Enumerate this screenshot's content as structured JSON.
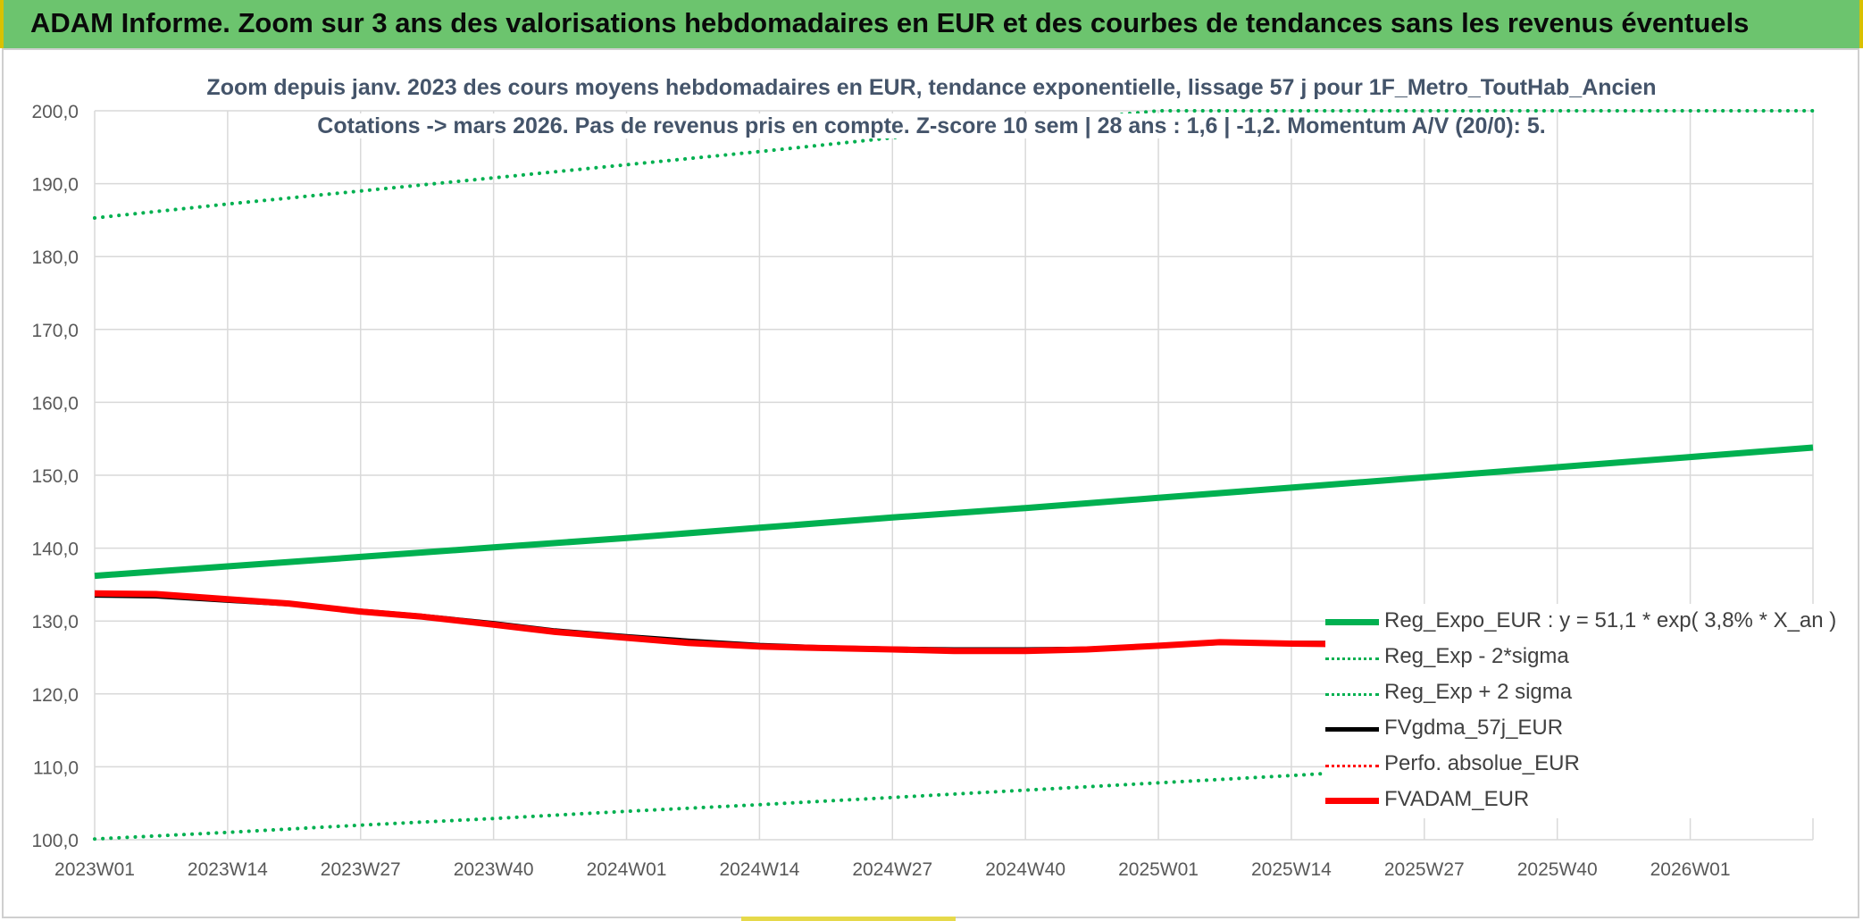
{
  "banner": {
    "title": "ADAM Informe. Zoom sur 3 ans des valorisations hebdomadaires en EUR et des courbes de tendances sans les revenus éventuels"
  },
  "chart_data": {
    "type": "line",
    "title_line1": "Zoom depuis janv. 2023 des cours moyens hebdomadaires en EUR, tendance exponentielle, lissage 57 j pour 1F_Metro_ToutHab_Ancien",
    "title_line2": "Cotations -> mars 2026. Pas de revenus pris en compte. Z-score 10 sem | 28 ans : 1,6 | -1,2. Momentum A/V (20/0): 5.",
    "ylim": [
      100,
      200
    ],
    "yticks": [
      100,
      110,
      120,
      130,
      140,
      150,
      160,
      170,
      180,
      190,
      200
    ],
    "ytick_labels": [
      "100,0",
      "110,0",
      "120,0",
      "130,0",
      "140,0",
      "150,0",
      "160,0",
      "170,0",
      "180,0",
      "190,0",
      "200,0"
    ],
    "x_categories": [
      "2023W01",
      "2023W14",
      "2023W27",
      "2023W40",
      "2024W01",
      "2024W14",
      "2024W27",
      "2024W40",
      "2025W01",
      "2025W14",
      "2025W27",
      "2025W40",
      "2026W01"
    ],
    "x_end": "2026W13",
    "grid": true,
    "legend_position": "bottom-right",
    "series": [
      {
        "name": "Reg_Expo_EUR : y = 51,1 * exp( 3,8% *  X_an )",
        "color": "#00b050",
        "style": "solid",
        "width": 7,
        "x": [
          "2023W01",
          "2023W14",
          "2023W27",
          "2023W40",
          "2024W01",
          "2024W14",
          "2024W27",
          "2024W40",
          "2025W01",
          "2025W14",
          "2025W27",
          "2025W40",
          "2026W01",
          "2026W13"
        ],
        "y": [
          136.2,
          137.5,
          138.8,
          140.1,
          141.4,
          142.8,
          144.2,
          145.5,
          146.9,
          148.3,
          149.7,
          151.1,
          152.5,
          153.8
        ]
      },
      {
        "name": "Reg_Exp - 2*sigma",
        "color": "#00b050",
        "style": "dotted",
        "width": 4,
        "x": [
          "2023W01",
          "2023W14",
          "2023W27",
          "2023W40",
          "2024W01",
          "2024W14",
          "2024W27",
          "2024W40",
          "2025W01",
          "2025W14",
          "2025W27",
          "2025W40",
          "2026W01",
          "2026W13"
        ],
        "y": [
          100.1,
          101.0,
          102.0,
          102.9,
          103.9,
          104.8,
          105.8,
          106.8,
          107.8,
          108.8,
          109.9,
          110.9,
          112.0,
          113.0
        ]
      },
      {
        "name": "Reg_Exp + 2 sigma",
        "color": "#00b050",
        "style": "dotted",
        "width": 4,
        "x": [
          "2023W01",
          "2023W14",
          "2023W27",
          "2023W40",
          "2024W01",
          "2024W14",
          "2024W27",
          "2024W40",
          "2025W01",
          "2025W14",
          "2025W27",
          "2025W40",
          "2026W01",
          "2026W13"
        ],
        "y": [
          185.3,
          187.2,
          189.0,
          190.8,
          192.6,
          194.4,
          196.3,
          198.2,
          200.0,
          200.0,
          200.0,
          200.0,
          200.0,
          200.0
        ]
      },
      {
        "name": "FVgdma_57j_EUR",
        "color": "#000000",
        "style": "solid",
        "width": 5,
        "x": [
          "2023W01",
          "2023W07",
          "2023W14",
          "2023W20",
          "2023W27",
          "2023W33",
          "2023W40",
          "2023W46",
          "2024W01",
          "2024W07",
          "2024W14",
          "2024W20",
          "2024W27",
          "2024W33",
          "2024W40",
          "2024W46",
          "2025W01",
          "2025W07",
          "2025W14",
          "2025W20",
          "2025W27",
          "2025W33",
          "2025W40",
          "2025W46",
          "2026W01",
          "2026W07",
          "2026W13"
        ],
        "y": [
          133.5,
          133.4,
          132.8,
          132.3,
          131.4,
          130.7,
          129.7,
          128.7,
          127.9,
          127.3,
          126.7,
          126.4,
          126.2,
          126.1,
          126.1,
          126.2,
          126.6,
          127.0,
          127.0,
          127.0,
          127.1,
          127.1,
          127.2,
          127.3,
          127.4,
          127.6,
          127.8
        ]
      },
      {
        "name": "Perfo. absolue_EUR",
        "color": "#ff0000",
        "style": "dotted",
        "width": 3,
        "x": [],
        "y": []
      },
      {
        "name": "FVADAM_EUR",
        "color": "#ff0000",
        "style": "solid",
        "width": 7,
        "x": [
          "2023W01",
          "2023W07",
          "2023W14",
          "2023W20",
          "2023W27",
          "2023W33",
          "2023W40",
          "2023W46",
          "2024W01",
          "2024W07",
          "2024W14",
          "2024W20",
          "2024W27",
          "2024W33",
          "2024W40",
          "2024W46",
          "2025W01",
          "2025W07",
          "2025W14",
          "2025W20",
          "2025W27",
          "2025W33",
          "2025W40",
          "2025W46",
          "2026W01",
          "2026W07",
          "2026W13"
        ],
        "y": [
          133.8,
          133.7,
          133.0,
          132.4,
          131.3,
          130.6,
          129.5,
          128.5,
          127.7,
          127.0,
          126.5,
          126.3,
          126.1,
          125.9,
          125.9,
          126.1,
          126.6,
          127.1,
          126.9,
          126.8,
          126.9,
          127.0,
          127.2,
          127.3,
          127.4,
          127.6,
          127.8
        ]
      }
    ]
  }
}
